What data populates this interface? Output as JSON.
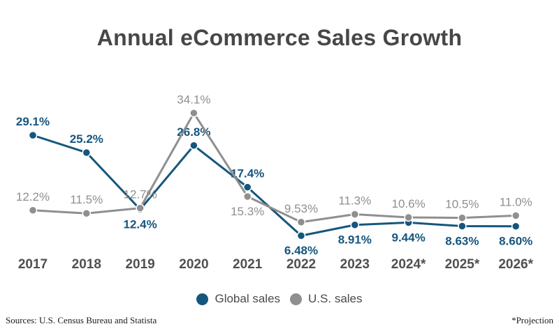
{
  "title": "Annual eCommerce Sales Growth",
  "chart_data": {
    "type": "line",
    "categories": [
      "2017",
      "2018",
      "2019",
      "2020",
      "2021",
      "2022",
      "2023",
      "2024*",
      "2025*",
      "2026*"
    ],
    "series": [
      {
        "name": "Global sales",
        "color": "#15567e",
        "values": [
          29.1,
          25.2,
          12.4,
          26.8,
          17.4,
          6.48,
          8.91,
          9.44,
          8.63,
          8.6
        ],
        "labels": [
          "29.1%",
          "25.2%",
          "12.4%",
          "26.8%",
          "17.4%",
          "6.48%",
          "8.91%",
          "9.44%",
          "8.63%",
          "8.60%"
        ],
        "label_positions": [
          "above",
          "above",
          "below",
          "above",
          "above",
          "below",
          "below",
          "below",
          "below",
          "below"
        ],
        "label_bold": true
      },
      {
        "name": "U.S. sales",
        "color": "#8f8f8f",
        "values": [
          12.2,
          11.5,
          12.7,
          34.1,
          15.3,
          9.53,
          11.3,
          10.6,
          10.5,
          11.0
        ],
        "labels": [
          "12.2%",
          "11.5%",
          "12.7%",
          "34.1%",
          "15.3%",
          "9.53%",
          "11.3%",
          "10.6%",
          "10.5%",
          "11.0%"
        ],
        "label_positions": [
          "above",
          "above",
          "above",
          "above",
          "below",
          "above",
          "above",
          "above",
          "above",
          "above"
        ],
        "label_bold": false
      }
    ],
    "ylim": [
      0,
      40
    ],
    "grid": false,
    "axes_visible": false,
    "data_labels": true,
    "legend_position": "bottom",
    "x_axis_label_color": "#4f4f4f"
  },
  "legend": {
    "items": [
      {
        "label": "Global sales",
        "color": "#15567e"
      },
      {
        "label": "U.S. sales",
        "color": "#8f8f8f"
      }
    ]
  },
  "footer": {
    "sources": "Sources: U.S. Census Bureau and Statista",
    "projection_note": "*Projection"
  }
}
